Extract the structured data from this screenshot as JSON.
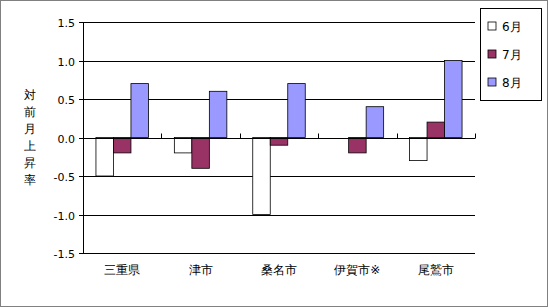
{
  "chart_data": {
    "type": "bar",
    "y_label": "対前月上昇率",
    "categories": [
      "三重県",
      "津市",
      "桑名市",
      "伊賀市※",
      "尾鷲市"
    ],
    "series": [
      {
        "name": "6月",
        "color": "#ffffff",
        "values": [
          -0.5,
          -0.2,
          -1.0,
          null,
          -0.3
        ]
      },
      {
        "name": "7月",
        "color": "#993366",
        "values": [
          -0.2,
          -0.4,
          -0.1,
          -0.2,
          0.2
        ]
      },
      {
        "name": "8月",
        "color": "#9999ff",
        "values": [
          0.7,
          0.6,
          0.7,
          0.4,
          1.0
        ]
      }
    ],
    "ylim": [
      -1.5,
      1.5
    ],
    "yticks": [
      -1.5,
      {
        "value": -1,
        "label": "-1.0"
      },
      -0.5,
      {
        "value": 0,
        "label": "0.0"
      },
      0.5,
      {
        "value": 1,
        "label": "1.0"
      },
      1.5
    ],
    "grid": true,
    "legend": "right"
  }
}
